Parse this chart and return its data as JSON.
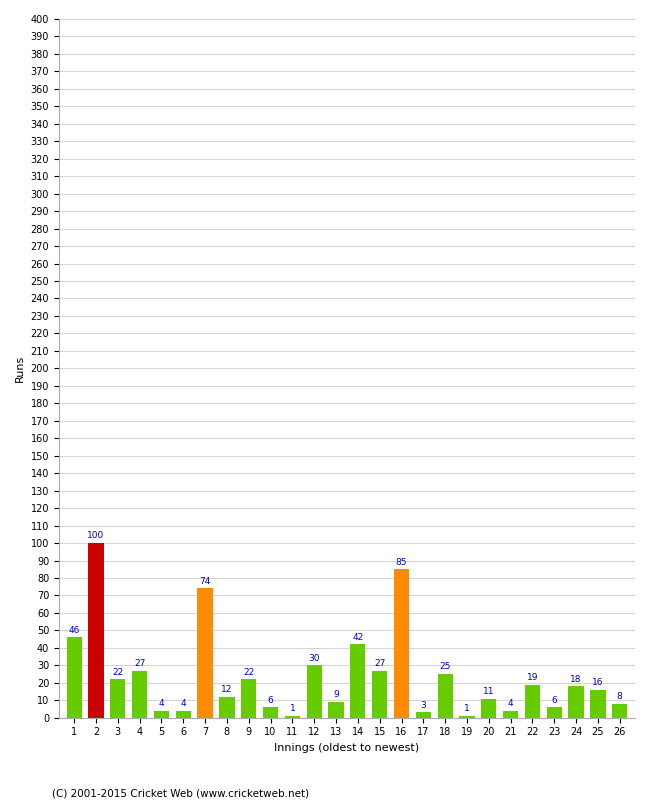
{
  "xlabel": "Innings (oldest to newest)",
  "ylabel": "Runs",
  "values": [
    46,
    100,
    22,
    27,
    4,
    4,
    74,
    12,
    22,
    6,
    1,
    30,
    9,
    42,
    27,
    85,
    3,
    25,
    1,
    11,
    4,
    19,
    6,
    18,
    16,
    8
  ],
  "colors": [
    "#66cc00",
    "#cc0000",
    "#66cc00",
    "#66cc00",
    "#66cc00",
    "#66cc00",
    "#ff8c00",
    "#66cc00",
    "#66cc00",
    "#66cc00",
    "#66cc00",
    "#66cc00",
    "#66cc00",
    "#66cc00",
    "#66cc00",
    "#ff8c00",
    "#66cc00",
    "#66cc00",
    "#66cc00",
    "#66cc00",
    "#66cc00",
    "#66cc00",
    "#66cc00",
    "#66cc00",
    "#66cc00",
    "#66cc00"
  ],
  "ylim": [
    0,
    400
  ],
  "background_color": "#ffffff",
  "grid_color": "#cccccc",
  "label_color": "#0000cc",
  "footer": "(C) 2001-2015 Cricket Web (www.cricketweb.net)"
}
